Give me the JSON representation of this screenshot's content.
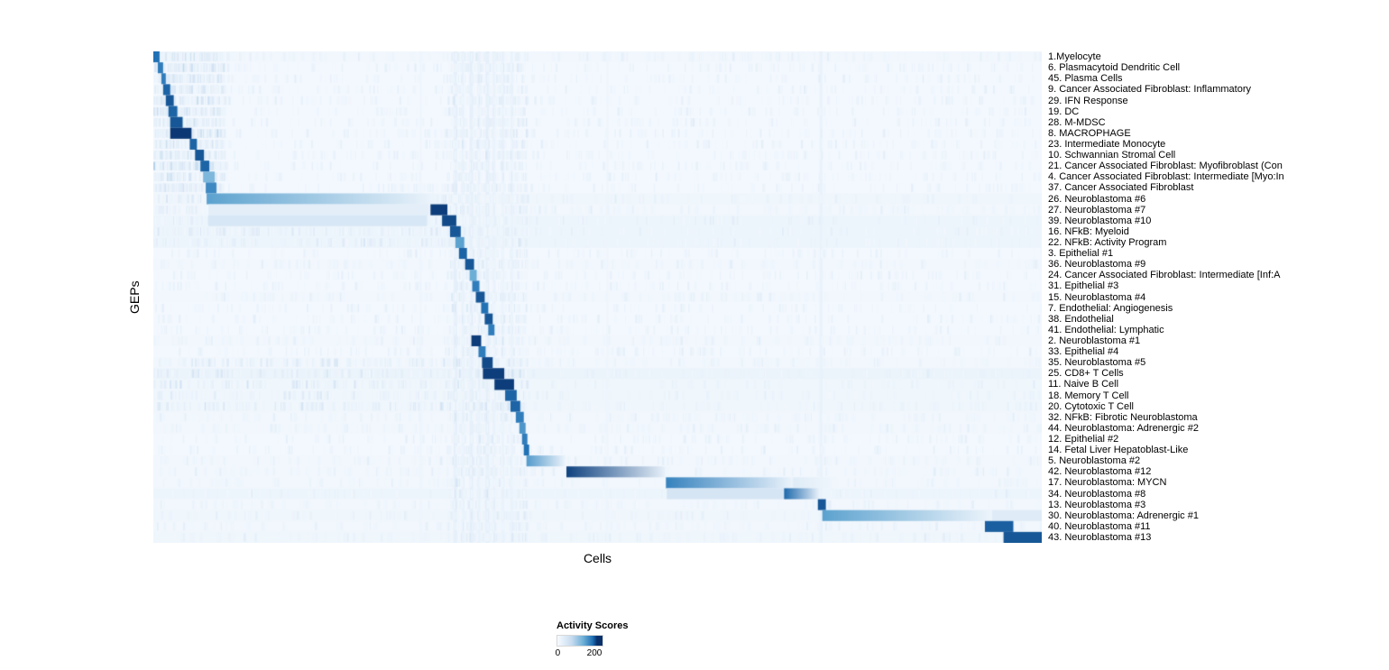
{
  "legend": {
    "title": "Activity Scores",
    "tick_min": "0",
    "tick_max": "200"
  },
  "chart_data": {
    "type": "heatmap",
    "title": "",
    "xlabel": "Cells",
    "ylabel": "GEPs",
    "colormap": "Blues",
    "colormap_stops": [
      "#f7fbff",
      "#c6dbef",
      "#6baed6",
      "#2171b5",
      "#08306b"
    ],
    "value_ticks": [
      0,
      200
    ],
    "value_range": [
      0,
      240
    ],
    "legend_position": "bottom",
    "grid": false,
    "rows": [
      {
        "label": "1.Myelocyte",
        "base": 0.03,
        "segments": [
          [
            0.0,
            0.007,
            0.75,
            0
          ]
        ]
      },
      {
        "label": "6. Plasmacytoid Dendritic Cell",
        "base": 0.02,
        "segments": [
          [
            0.005,
            0.011,
            0.7,
            0
          ]
        ]
      },
      {
        "label": "45. Plasma Cells",
        "base": 0.02,
        "segments": [
          [
            0.009,
            0.014,
            0.7,
            0
          ]
        ]
      },
      {
        "label": "9. Cancer Associated Fibroblast: Inflammatory",
        "base": 0.02,
        "segments": [
          [
            0.011,
            0.019,
            0.8,
            0
          ]
        ]
      },
      {
        "label": "29. IFN Response",
        "base": 0.02,
        "segments": [
          [
            0.014,
            0.023,
            0.85,
            0
          ]
        ]
      },
      {
        "label": "19. DC",
        "base": 0.02,
        "segments": [
          [
            0.017,
            0.027,
            0.8,
            0
          ]
        ]
      },
      {
        "label": "28. M-MDSC",
        "base": 0.02,
        "segments": [
          [
            0.019,
            0.033,
            0.85,
            0
          ]
        ]
      },
      {
        "label": "8. MACROPHAGE",
        "base": 0.02,
        "segments": [
          [
            0.019,
            0.043,
            0.97,
            0
          ]
        ]
      },
      {
        "label": "23. Intermediate Monocyte",
        "base": 0.02,
        "segments": [
          [
            0.041,
            0.049,
            0.8,
            0
          ]
        ]
      },
      {
        "label": "10. Schwannian Stromal Cell",
        "base": 0.02,
        "segments": [
          [
            0.047,
            0.057,
            0.85,
            0
          ]
        ]
      },
      {
        "label": "21. Cancer Associated Fibroblast: Myofibroblast (Con",
        "base": 0.02,
        "segments": [
          [
            0.053,
            0.063,
            0.8,
            0
          ]
        ]
      },
      {
        "label": "4. Cancer Associated Fibroblast: Intermediate [Myo:In",
        "base": 0.02,
        "segments": [
          [
            0.056,
            0.069,
            0.45,
            0
          ]
        ]
      },
      {
        "label": "37. Cancer Associated Fibroblast",
        "base": 0.02,
        "segments": [
          [
            0.059,
            0.071,
            0.65,
            0
          ]
        ]
      },
      {
        "label": "26. Neuroblastoma #6",
        "base": 0.04,
        "segments": [
          [
            0.06,
            0.318,
            0.55,
            1
          ]
        ]
      },
      {
        "label": "27. Neuroblastoma #7",
        "base": 0.03,
        "segments": [
          [
            0.062,
            0.31,
            0.1,
            0
          ],
          [
            0.312,
            0.331,
            0.95,
            0
          ]
        ]
      },
      {
        "label": "39. Neuroblastoma #10",
        "base": 0.05,
        "segments": [
          [
            0.062,
            0.308,
            0.16,
            0
          ],
          [
            0.325,
            0.341,
            0.9,
            0
          ]
        ]
      },
      {
        "label": "16. NFkB: Myeloid",
        "base": 0.05,
        "segments": [
          [
            0.334,
            0.346,
            0.85,
            0
          ]
        ]
      },
      {
        "label": "22. NFkB: Activity Program",
        "base": 0.05,
        "segments": [
          [
            0.34,
            0.35,
            0.55,
            0
          ]
        ]
      },
      {
        "label": "3. Epithelial #1",
        "base": 0.02,
        "segments": [
          [
            0.344,
            0.353,
            0.8,
            0
          ]
        ]
      },
      {
        "label": "36. Neuroblastoma #9",
        "base": 0.03,
        "segments": [
          [
            0.351,
            0.361,
            0.85,
            0
          ]
        ]
      },
      {
        "label": "24. Cancer Associated Fibroblast: Intermediate [Inf:A",
        "base": 0.02,
        "segments": [
          [
            0.356,
            0.364,
            0.5,
            0
          ]
        ]
      },
      {
        "label": "31. Epithelial #3",
        "base": 0.02,
        "segments": [
          [
            0.359,
            0.367,
            0.7,
            0
          ]
        ]
      },
      {
        "label": "15. Neuroblastoma #4",
        "base": 0.03,
        "segments": [
          [
            0.363,
            0.373,
            0.85,
            0
          ]
        ]
      },
      {
        "label": "7. Endothelial: Angiogenesis",
        "base": 0.02,
        "segments": [
          [
            0.369,
            0.377,
            0.75,
            0
          ]
        ]
      },
      {
        "label": "38. Endothelial",
        "base": 0.02,
        "segments": [
          [
            0.373,
            0.382,
            0.85,
            0
          ]
        ]
      },
      {
        "label": "41. Endothelial: Lymphatic",
        "base": 0.02,
        "segments": [
          [
            0.377,
            0.384,
            0.7,
            0
          ]
        ]
      },
      {
        "label": "2. Neuroblastoma #1",
        "base": 0.03,
        "segments": [
          [
            0.358,
            0.369,
            0.95,
            0
          ]
        ]
      },
      {
        "label": "33. Epithelial #4",
        "base": 0.02,
        "segments": [
          [
            0.366,
            0.374,
            0.7,
            0
          ]
        ]
      },
      {
        "label": "35. Neuroblastoma #5",
        "base": 0.03,
        "segments": [
          [
            0.37,
            0.382,
            0.9,
            0
          ]
        ]
      },
      {
        "label": "25. CD8+ T Cells",
        "base": 0.06,
        "segments": [
          [
            0.371,
            0.395,
            0.95,
            0
          ]
        ]
      },
      {
        "label": "11. Naive B Cell",
        "base": 0.04,
        "segments": [
          [
            0.384,
            0.406,
            0.95,
            0
          ]
        ]
      },
      {
        "label": "18. Memory T Cell",
        "base": 0.04,
        "segments": [
          [
            0.396,
            0.409,
            0.8,
            0
          ]
        ]
      },
      {
        "label": "20. Cytotoxic T Cell",
        "base": 0.04,
        "segments": [
          [
            0.402,
            0.413,
            0.8,
            0
          ]
        ]
      },
      {
        "label": "32. NFkB: Fibrotic Neuroblastoma",
        "base": 0.03,
        "segments": [
          [
            0.408,
            0.417,
            0.7,
            0
          ]
        ]
      },
      {
        "label": "44. Neuroblastoma: Adrenergic #2",
        "base": 0.03,
        "segments": [
          [
            0.412,
            0.419,
            0.6,
            0
          ]
        ]
      },
      {
        "label": "12. Epithelial #2",
        "base": 0.02,
        "segments": [
          [
            0.415,
            0.421,
            0.7,
            0
          ]
        ]
      },
      {
        "label": "14. Fetal Liver Hepatoblast-Like",
        "base": 0.02,
        "segments": [
          [
            0.417,
            0.423,
            0.75,
            0
          ]
        ]
      },
      {
        "label": "5. Neuroblastoma #2",
        "base": 0.03,
        "segments": [
          [
            0.42,
            0.464,
            0.58,
            1
          ]
        ]
      },
      {
        "label": "42. Neuroblastoma #12",
        "base": 0.03,
        "segments": [
          [
            0.465,
            0.576,
            0.93,
            1
          ]
        ]
      },
      {
        "label": "17. Neuroblastoma: MYCN",
        "base": 0.03,
        "segments": [
          [
            0.577,
            0.72,
            0.68,
            1
          ],
          [
            0.72,
            0.77,
            0.12,
            1
          ]
        ]
      },
      {
        "label": "34. Neuroblastoma #8",
        "base": 0.05,
        "segments": [
          [
            0.578,
            0.71,
            0.17,
            0
          ],
          [
            0.71,
            0.75,
            0.78,
            1
          ]
        ]
      },
      {
        "label": "13. Neuroblastoma #3",
        "base": 0.03,
        "segments": [
          [
            0.748,
            0.757,
            0.85,
            0
          ]
        ]
      },
      {
        "label": "30. Neuroblastoma: Adrenergic #1",
        "base": 0.04,
        "segments": [
          [
            0.753,
            0.944,
            0.55,
            1
          ],
          [
            0.944,
            1.0,
            0.12,
            0
          ]
        ]
      },
      {
        "label": "40. Neuroblastoma #11",
        "base": 0.03,
        "segments": [
          [
            0.936,
            0.968,
            0.82,
            0
          ]
        ]
      },
      {
        "label": "43. Neuroblastoma #13",
        "base": 0.04,
        "segments": [
          [
            0.957,
            1.0,
            0.85,
            0
          ]
        ]
      }
    ],
    "streaks": [
      {
        "x": 0.338,
        "w": 0.004,
        "v": 0.1
      },
      {
        "x": 0.347,
        "w": 0.003,
        "v": 0.08
      },
      {
        "x": 0.356,
        "w": 0.004,
        "v": 0.1
      },
      {
        "x": 0.365,
        "w": 0.003,
        "v": 0.08
      },
      {
        "x": 0.374,
        "w": 0.004,
        "v": 0.1
      },
      {
        "x": 0.382,
        "w": 0.003,
        "v": 0.08
      },
      {
        "x": 0.392,
        "w": 0.003,
        "v": 0.07
      },
      {
        "x": 0.402,
        "w": 0.003,
        "v": 0.07
      },
      {
        "x": 0.75,
        "w": 0.003,
        "v": 0.08
      },
      {
        "x": 0.3,
        "w": 0.002,
        "v": 0.05
      },
      {
        "x": 0.51,
        "w": 0.002,
        "v": 0.05
      }
    ],
    "noise": {
      "seed": 7,
      "regions": [
        {
          "rows": [
            0,
            13
          ],
          "x": [
            0.0,
            0.08
          ],
          "count": 1500,
          "vmax": 0.3
        },
        {
          "rows": [
            0,
            45
          ],
          "x": [
            0.33,
            0.42
          ],
          "count": 2600,
          "vmax": 0.16
        },
        {
          "rows": [
            0,
            45
          ],
          "x": [
            0.0,
            1.0
          ],
          "count": 7000,
          "vmax": 0.1
        },
        {
          "rows": [
            28,
            33
          ],
          "x": [
            0.0,
            0.42
          ],
          "count": 700,
          "vmax": 0.2
        },
        {
          "rows": [
            13,
            18
          ],
          "x": [
            0.0,
            0.34
          ],
          "count": 700,
          "vmax": 0.18
        }
      ]
    }
  }
}
